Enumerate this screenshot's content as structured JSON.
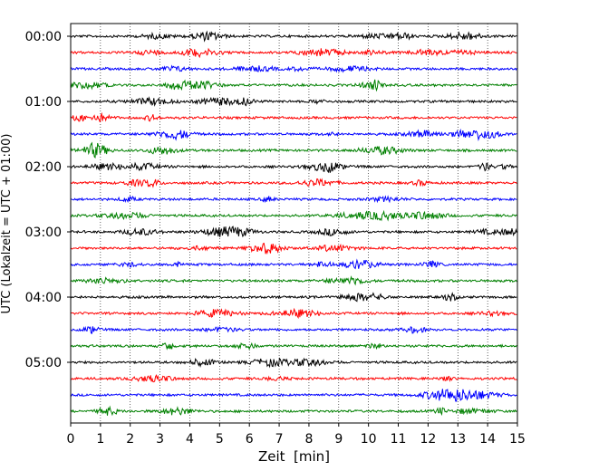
{
  "chart_data": {
    "type": "line",
    "xlabel": "Zeit  [min]",
    "ylabel": "UTC (Lokalzeit = UTC + 01:00)",
    "xlim": [
      0,
      15
    ],
    "x_ticks": [
      "0",
      "1",
      "2",
      "3",
      "4",
      "5",
      "6",
      "7",
      "8",
      "9",
      "10",
      "11",
      "12",
      "13",
      "14",
      "15"
    ],
    "y_tick_labels": [
      "00:00",
      "01:00",
      "02:00",
      "03:00",
      "04:00",
      "05:00"
    ],
    "y_tick_rows": [
      0,
      4,
      8,
      12,
      16,
      20
    ],
    "row_interval_minutes": 15,
    "rows": 24,
    "trace_colors": [
      "#000000",
      "#ff0000",
      "#0000ff",
      "#008000"
    ],
    "grid": "vertical-dotted"
  }
}
